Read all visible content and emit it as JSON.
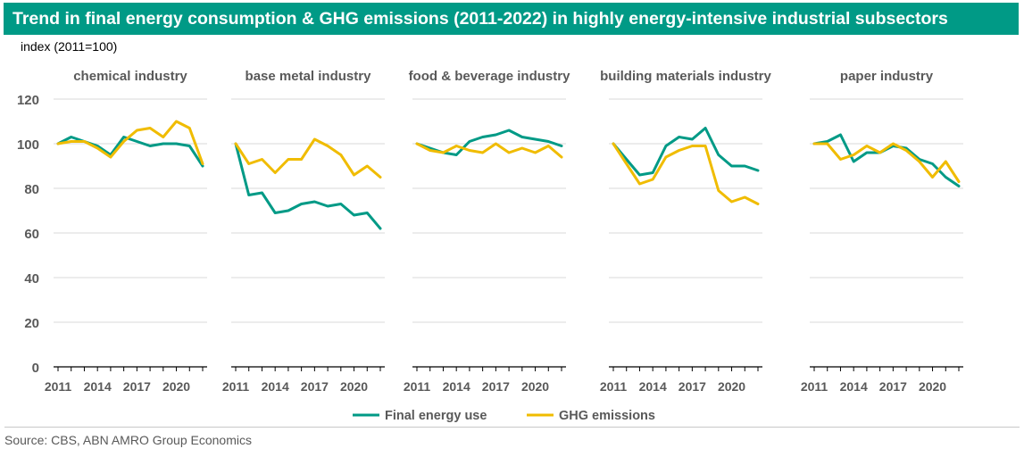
{
  "header": {
    "title": "Trend in final energy consumption & GHG emissions (2011-2022) in highly energy-intensive industrial subsectors",
    "unit_label": "index (2011=100)"
  },
  "footer": {
    "source": "Source: CBS, ABN AMRO Group Economics"
  },
  "colors": {
    "final_energy_use": "#009a86",
    "ghg_emissions": "#f0bc00",
    "title_bg": "#009a86"
  },
  "chart_data": {
    "type": "line",
    "legend_position": "bottom",
    "grid": true,
    "x": [
      2011,
      2012,
      2013,
      2014,
      2015,
      2016,
      2017,
      2018,
      2019,
      2020,
      2021,
      2022
    ],
    "ylim": [
      0,
      120
    ],
    "yticks": [
      0,
      20,
      40,
      60,
      80,
      100,
      120
    ],
    "xticks": [
      "2011",
      "2014",
      "2017",
      "2020"
    ],
    "series_names": [
      "Final energy use",
      "GHG emissions"
    ],
    "panels": [
      {
        "title": "chemical industry",
        "series": [
          {
            "name": "Final energy use",
            "values": [
              100,
              103,
              101,
              99,
              95,
              103,
              101,
              99,
              100,
              100,
              99,
              90
            ]
          },
          {
            "name": "GHG emissions",
            "values": [
              100,
              101,
              101,
              98,
              94,
              101,
              106,
              107,
              103,
              110,
              107,
              91
            ]
          }
        ]
      },
      {
        "title": "base metal industry",
        "series": [
          {
            "name": "Final energy use",
            "values": [
              100,
              77,
              78,
              69,
              70,
              73,
              74,
              72,
              73,
              68,
              69,
              62
            ]
          },
          {
            "name": "GHG emissions",
            "values": [
              100,
              91,
              93,
              87,
              93,
              93,
              102,
              99,
              95,
              86,
              90,
              85
            ]
          }
        ]
      },
      {
        "title": "food & beverage industry",
        "series": [
          {
            "name": "Final energy use",
            "values": [
              100,
              98,
              96,
              95,
              101,
              103,
              104,
              106,
              103,
              102,
              101,
              99
            ]
          },
          {
            "name": "GHG emissions",
            "values": [
              100,
              97,
              96,
              99,
              97,
              96,
              100,
              96,
              98,
              96,
              99,
              94
            ]
          }
        ]
      },
      {
        "title": "building materials industry",
        "series": [
          {
            "name": "Final energy use",
            "values": [
              100,
              93,
              86,
              87,
              99,
              103,
              102,
              107,
              95,
              90,
              90,
              88
            ]
          },
          {
            "name": "GHG emissions",
            "values": [
              100,
              91,
              82,
              84,
              94,
              97,
              99,
              99,
              79,
              74,
              76,
              73
            ]
          }
        ]
      },
      {
        "title": "paper industry",
        "series": [
          {
            "name": "Final energy use",
            "values": [
              100,
              101,
              104,
              92,
              96,
              96,
              99,
              98,
              93,
              91,
              85,
              81
            ]
          },
          {
            "name": "GHG emissions",
            "values": [
              100,
              100,
              93,
              95,
              99,
              96,
              100,
              97,
              92,
              85,
              92,
              83
            ]
          }
        ]
      }
    ]
  }
}
